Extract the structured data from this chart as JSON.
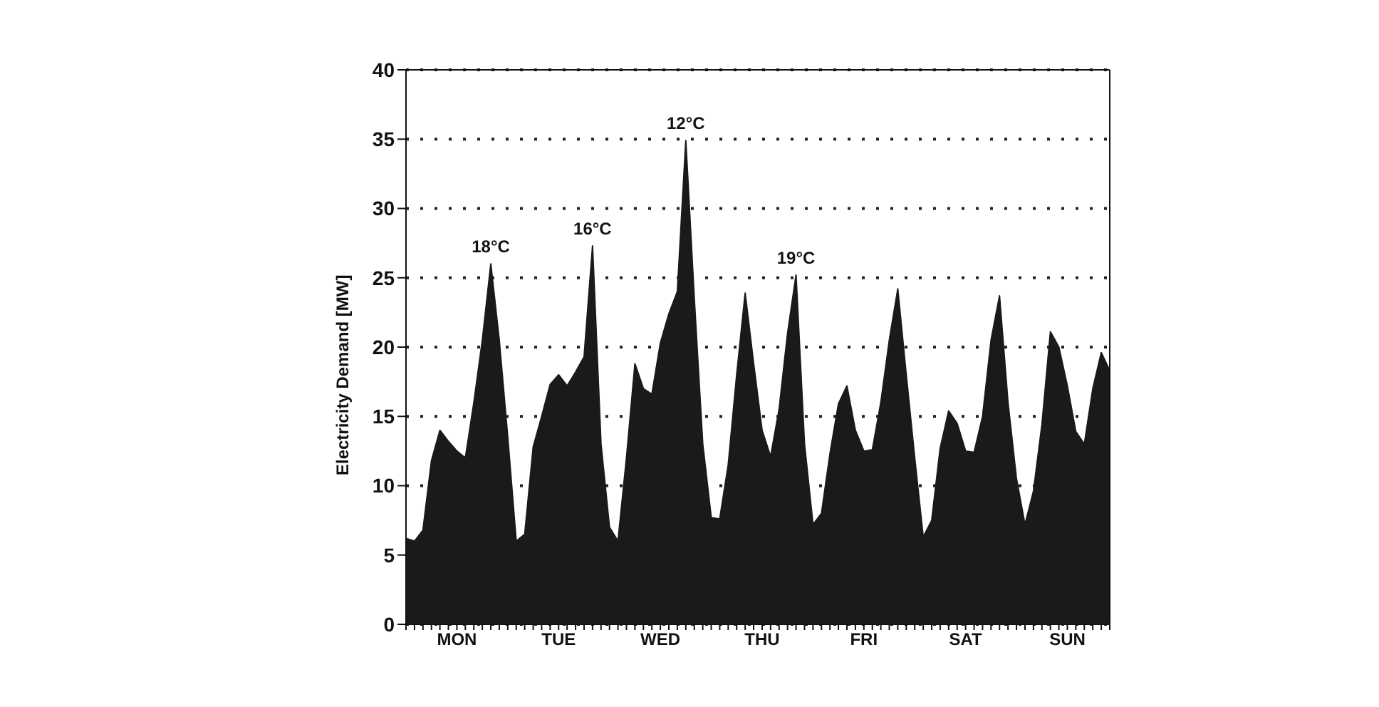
{
  "chart_data": {
    "type": "area",
    "ylabel": "Electricity Demand [MW]",
    "categories": [
      null,
      null,
      null,
      null,
      null,
      null,
      "MON",
      null,
      null,
      null,
      null,
      null,
      null,
      null,
      null,
      null,
      null,
      null,
      "TUE",
      null,
      null,
      null,
      null,
      null,
      null,
      null,
      null,
      null,
      null,
      null,
      "WED",
      null,
      null,
      null,
      null,
      null,
      null,
      null,
      null,
      null,
      null,
      null,
      "THU",
      null,
      null,
      null,
      null,
      null,
      null,
      null,
      null,
      null,
      null,
      null,
      "FRI",
      null,
      null,
      null,
      null,
      null,
      null,
      null,
      null,
      null,
      null,
      null,
      "SAT",
      null,
      null,
      null,
      null,
      null,
      null,
      null,
      null,
      null,
      null,
      null,
      "SUN",
      null,
      null,
      null,
      null,
      null
    ],
    "series": [
      {
        "color": "#1a1a1a",
        "values": [
          6.2,
          6,
          6.8,
          11.8,
          14,
          13.2,
          12.5,
          12,
          16,
          20.5,
          26,
          20.5,
          13.5,
          6,
          6.5,
          12.8,
          15,
          17.3,
          18,
          17.2,
          18.2,
          19.3,
          27.3,
          13,
          7,
          6,
          12,
          18.8,
          17,
          16.6,
          20.3,
          22.4,
          24,
          34.9,
          23.5,
          13,
          7.7,
          7.6,
          11.5,
          18,
          23.9,
          18.8,
          14,
          12.1,
          15.5,
          21,
          25.2,
          13,
          7.2,
          8,
          12.3,
          15.9,
          17.2,
          14,
          12.5,
          12.6,
          16,
          20.5,
          24.2,
          18,
          12,
          6.3,
          7.5,
          12.7,
          15.4,
          14.5,
          12.5,
          12.4,
          15,
          20.5,
          23.7,
          16,
          10.5,
          7.2,
          9.6,
          14.4,
          21.1,
          20,
          17.2,
          13.9,
          13,
          17,
          19.6,
          18.3
        ]
      }
    ],
    "ylim": [
      0,
      40
    ],
    "yticks": [
      0,
      5,
      10,
      15,
      20,
      25,
      30,
      35,
      40
    ],
    "grid": "y",
    "line_style": "dotted",
    "annotations": [
      {
        "text": "18°C",
        "y": 26
      },
      {
        "text": "16°C",
        "y": 27.3
      },
      {
        "text": "12°C",
        "y": 34.9
      },
      {
        "text": "19°C",
        "y": 25.2
      }
    ]
  }
}
